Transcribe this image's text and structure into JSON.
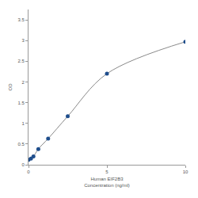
{
  "chart_data": {
    "type": "line",
    "x": [
      0,
      0.156,
      0.313,
      0.625,
      1.25,
      2.5,
      5,
      10
    ],
    "values": [
      0.12,
      0.15,
      0.2,
      0.38,
      0.63,
      1.17,
      2.2,
      2.97
    ],
    "xlabel": "Human EIF2B3\nConcentration (ng/ml)",
    "ylabel": "OD",
    "xlim": [
      0,
      10
    ],
    "xticks": [
      0,
      5,
      10
    ],
    "ylim": [
      0,
      3.75
    ],
    "yticks": [
      0,
      0.5,
      1,
      1.5,
      2,
      2.5,
      3,
      3.5
    ],
    "color": "#1f4e8c",
    "marker": "circle",
    "line_style": "solid",
    "grid": false
  }
}
